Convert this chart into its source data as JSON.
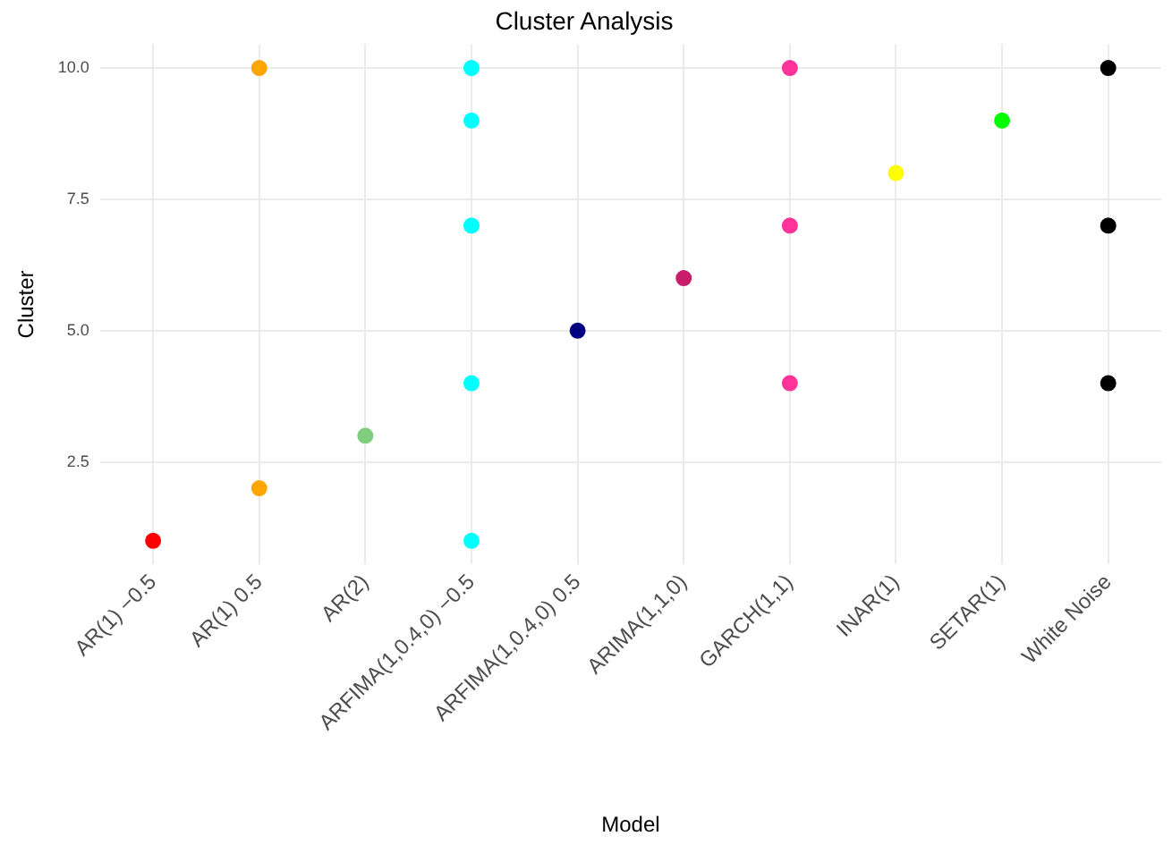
{
  "chart_data": {
    "type": "scatter",
    "title": "Cluster Analysis",
    "xlabel": "Model",
    "ylabel": "Cluster",
    "marker": "circle",
    "categories": [
      "AR(1) −0.5",
      "AR(1) 0.5",
      "AR(2)",
      "ARFIMA(1,0.4,0) −0.5",
      "ARFIMA(1,0.4,0) 0.5",
      "ARIMA(1,1,0)",
      "GARCH(1,1)",
      "INAR(1)",
      "SETAR(1)",
      "White Noise"
    ],
    "ylim": [
      0.55,
      10.45
    ],
    "yticks": [
      {
        "value": 2.5,
        "label": "2.5"
      },
      {
        "value": 5,
        "label": "5.0"
      },
      {
        "value": 7.5,
        "label": "7.5"
      },
      {
        "value": 10,
        "label": "10.0"
      }
    ],
    "grid": true,
    "legend": false,
    "series": [
      {
        "color": "#ff0000",
        "x": [
          "AR(1) −0.5"
        ],
        "values": [
          1
        ]
      },
      {
        "color": "#ffa500",
        "x": [
          "AR(1) 0.5",
          "AR(1) 0.5"
        ],
        "values": [
          2,
          10
        ]
      },
      {
        "color": "#7fcd7f",
        "x": [
          "AR(2)"
        ],
        "values": [
          3
        ]
      },
      {
        "color": "#00ffff",
        "x": [
          "ARFIMA(1,0.4,0) −0.5",
          "ARFIMA(1,0.4,0) −0.5",
          "ARFIMA(1,0.4,0) −0.5",
          "ARFIMA(1,0.4,0) −0.5",
          "ARFIMA(1,0.4,0) −0.5"
        ],
        "values": [
          10,
          9,
          7,
          4,
          1
        ]
      },
      {
        "color": "#000080",
        "x": [
          "ARFIMA(1,0.4,0) 0.5"
        ],
        "values": [
          5
        ]
      },
      {
        "color": "#c71d6b",
        "x": [
          "ARIMA(1,1,0)"
        ],
        "values": [
          6
        ]
      },
      {
        "color": "#ff3399",
        "x": [
          "GARCH(1,1)",
          "GARCH(1,1)",
          "GARCH(1,1)"
        ],
        "values": [
          10,
          7,
          4
        ]
      },
      {
        "color": "#ffff00",
        "x": [
          "INAR(1)"
        ],
        "values": [
          8
        ]
      },
      {
        "color": "#00ff00",
        "x": [
          "SETAR(1)"
        ],
        "values": [
          9
        ]
      },
      {
        "color": "#000000",
        "x": [
          "White Noise",
          "White Noise",
          "White Noise"
        ],
        "values": [
          10,
          7,
          4
        ]
      }
    ]
  }
}
